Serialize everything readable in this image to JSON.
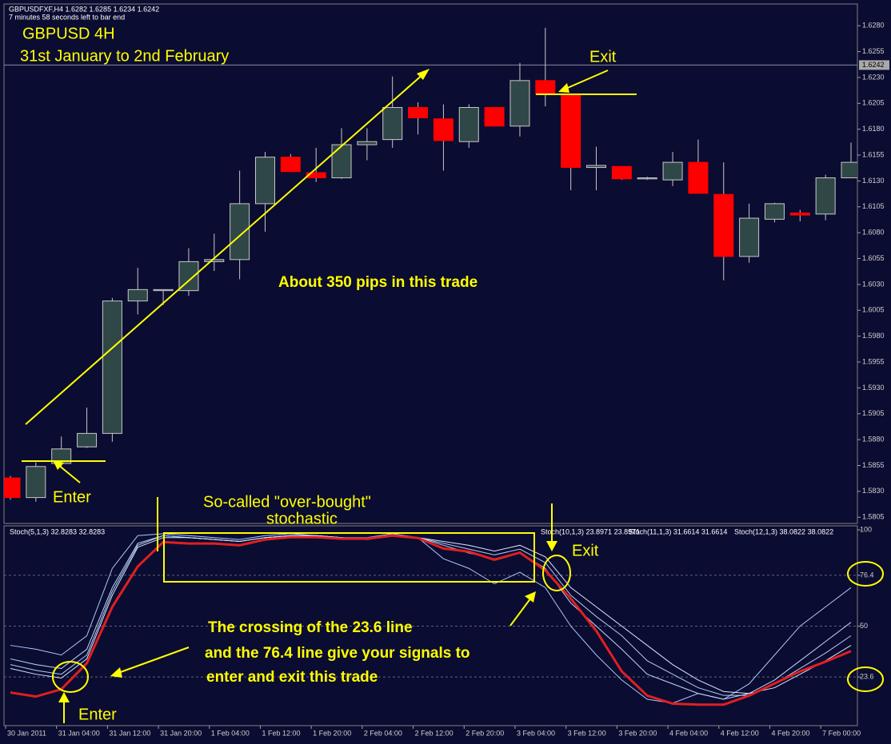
{
  "chart_data": {
    "type": "candlestick",
    "header": [
      "GBPUSDFXF,H4  1.6282 1.6285 1.6234 1.6242",
      "7 minutes 58 seconds left to bar end"
    ],
    "up_color": "#2f4747",
    "down_color": "#ff0000",
    "outline_color": "#c8c8c8",
    "categories": [
      "30 Jan 2011",
      null,
      "31 Jan 04:00",
      null,
      "31 Jan 12:00",
      null,
      "31 Jan 20:00",
      null,
      "1 Feb 04:00",
      null,
      "1 Feb 12:00",
      null,
      "1 Feb 20:00",
      null,
      "2 Feb 04:00",
      null,
      "2 Feb 12:00",
      null,
      "2 Feb 20:00",
      null,
      "3 Feb 04:00",
      null,
      "3 Feb 12:00",
      null,
      "3 Feb 20:00",
      null,
      "4 Feb 04:00",
      null,
      "4 Feb 12:00",
      null,
      "4 Feb 20:00",
      null,
      "7 Feb 00:00",
      null
    ],
    "open": [
      1.5843,
      1.5824,
      1.5857,
      1.5873,
      1.5886,
      1.6014,
      1.6024,
      1.6024,
      1.6052,
      1.6054,
      1.6108,
      1.6153,
      1.6138,
      1.6133,
      1.6165,
      1.617,
      1.6201,
      1.619,
      1.6168,
      1.6201,
      1.6183,
      1.6227,
      1.6214,
      1.6143,
      1.6144,
      1.6132,
      1.6131,
      1.6148,
      1.6117,
      1.6057,
      1.6093,
      1.6099,
      1.6098,
      1.6133
    ],
    "high": [
      1.5845,
      1.5858,
      1.5883,
      1.5911,
      1.6017,
      1.6046,
      1.6025,
      1.6065,
      1.6079,
      1.614,
      1.6158,
      1.6156,
      1.6162,
      1.6181,
      1.6181,
      1.6231,
      1.6206,
      1.6204,
      1.6204,
      1.6201,
      1.6244,
      1.6278,
      1.6214,
      1.6163,
      1.6144,
      1.6134,
      1.6158,
      1.617,
      1.6148,
      1.6108,
      1.6109,
      1.6102,
      1.6136,
      1.6167
    ],
    "low": [
      1.5822,
      1.582,
      1.5854,
      1.5872,
      1.5878,
      1.6001,
      1.601,
      1.6019,
      1.6043,
      1.6035,
      1.6081,
      1.6139,
      1.6129,
      1.6132,
      1.615,
      1.6162,
      1.6175,
      1.614,
      1.6162,
      1.6183,
      1.6173,
      1.6202,
      1.6121,
      1.6121,
      1.6131,
      1.6131,
      1.6125,
      1.6118,
      1.6034,
      1.6051,
      1.609,
      1.6091,
      1.6092,
      1.6133
    ],
    "close": [
      1.5824,
      1.5854,
      1.5871,
      1.5886,
      1.6014,
      1.6025,
      1.6025,
      1.6052,
      1.6054,
      1.6108,
      1.6153,
      1.6139,
      1.6133,
      1.6165,
      1.6168,
      1.6201,
      1.6191,
      1.6169,
      1.6201,
      1.6183,
      1.6227,
      1.6214,
      1.6143,
      1.6145,
      1.6132,
      1.6133,
      1.6148,
      1.6118,
      1.6057,
      1.6094,
      1.6108,
      1.6097,
      1.6133,
      1.6148
    ],
    "ylim": [
      1.5799,
      1.6301
    ],
    "yticks": [
      {
        "value": 1.628,
        "label": "1.6280"
      },
      {
        "value": 1.6255,
        "label": "1.6255"
      },
      {
        "value": 1.623,
        "label": "1.6230"
      },
      {
        "value": 1.6205,
        "label": "1.6205"
      },
      {
        "value": 1.618,
        "label": "1.6180"
      },
      {
        "value": 1.6155,
        "label": "1.6155"
      },
      {
        "value": 1.613,
        "label": "1.6130"
      },
      {
        "value": 1.6105,
        "label": "1.6105"
      },
      {
        "value": 1.608,
        "label": "1.6080"
      },
      {
        "value": 1.6055,
        "label": "1.6055"
      },
      {
        "value": 1.603,
        "label": "1.6030"
      },
      {
        "value": 1.6005,
        "label": "1.6005"
      },
      {
        "value": 1.598,
        "label": "1.5980"
      },
      {
        "value": 1.5955,
        "label": "1.5955"
      },
      {
        "value": 1.593,
        "label": "1.5930"
      },
      {
        "value": 1.5905,
        "label": "1.5905"
      },
      {
        "value": 1.588,
        "label": "1.5880"
      },
      {
        "value": 1.5855,
        "label": "1.5855"
      },
      {
        "value": 1.583,
        "label": "1.5830"
      },
      {
        "value": 1.5805,
        "label": "1.5805"
      }
    ],
    "current_price": {
      "value": 1.6242,
      "label": "1.6242"
    },
    "annotations": [
      "GBPUSD 4H",
      "31st January to 2nd February",
      "Exit",
      "About 350 pips in this trade",
      "Enter"
    ],
    "stochastic": {
      "ylim": [
        -1.7,
        102.1
      ],
      "yticks": [
        100,
        76.4,
        50,
        23.6
      ],
      "series": [
        {
          "name": "Stoch(5,1,3) 32.8283 32.8283",
          "color": "#a8c8ff",
          "values": [
            40,
            38,
            35,
            45,
            80,
            97,
            98,
            97,
            96,
            95,
            97,
            98,
            97,
            96,
            96,
            98,
            96,
            85,
            80,
            72,
            78,
            70,
            50,
            35,
            22,
            12,
            10,
            15,
            12,
            20,
            35,
            50,
            60,
            70
          ]
        },
        {
          "name": "Stoch(10,1,3) 23.8971 23.8971",
          "color": "#c0d8ff",
          "values": [
            33,
            30,
            28,
            38,
            70,
            93,
            97,
            96,
            95,
            94,
            96,
            97,
            97,
            96,
            95,
            97,
            96,
            92,
            88,
            85,
            88,
            80,
            62,
            50,
            38,
            25,
            20,
            15,
            12,
            15,
            22,
            32,
            42,
            52
          ]
        },
        {
          "name": "Stoch(11,1,3) 31.6614 31.6614",
          "color": "#b0ccf8",
          "values": [
            30,
            27,
            25,
            35,
            68,
            92,
            97,
            96,
            95,
            94,
            96,
            97,
            97,
            96,
            95,
            97,
            96,
            93,
            90,
            87,
            90,
            83,
            66,
            55,
            45,
            32,
            25,
            18,
            14,
            14,
            20,
            28,
            36,
            45
          ]
        },
        {
          "name": "Stoch(12,1,3) 38.0822 38.0822",
          "color": "#d8e6ff",
          "values": [
            28,
            25,
            23,
            33,
            66,
            91,
            96,
            96,
            95,
            94,
            96,
            97,
            97,
            96,
            95,
            97,
            96,
            94,
            92,
            89,
            92,
            86,
            70,
            60,
            50,
            40,
            30,
            22,
            16,
            15,
            18,
            25,
            32,
            40
          ]
        }
      ],
      "highlight": {
        "color": "#e02020",
        "values": [
          15.5,
          13.4,
          17.2,
          30.7,
          60,
          81,
          93.7,
          92.9,
          92.9,
          92,
          95,
          96.2,
          96.2,
          95.4,
          95.4,
          97,
          95.8,
          90.3,
          88.7,
          84.5,
          88.2,
          79,
          64.3,
          47.5,
          26.5,
          13.9,
          9.7,
          9.2,
          9.2,
          13.9,
          20.2,
          26.5,
          31.5,
          37
        ]
      },
      "annotations": [
        "So-called \"over-bought\"",
        "stochastic",
        "Exit",
        "The crossing of the 23.6 line",
        "and the 76.4 line give your signals to",
        "enter and exit this trade",
        "Enter"
      ]
    }
  }
}
